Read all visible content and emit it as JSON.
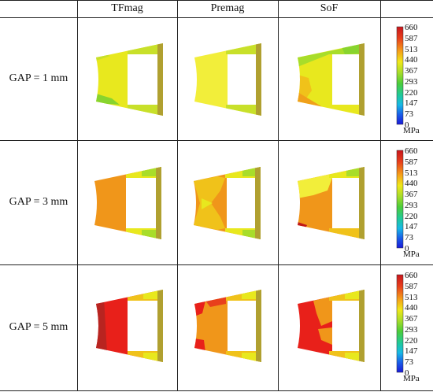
{
  "columns": [
    "TFmag",
    "Premag",
    "SoF"
  ],
  "rows": [
    {
      "label": "GAP = 1 mm"
    },
    {
      "label": "GAP = 3 mm"
    },
    {
      "label": "GAP = 5 mm"
    }
  ],
  "colorbar": {
    "ticks": [
      "660",
      "587",
      "513",
      "440",
      "367",
      "293",
      "220",
      "147",
      "73",
      "0"
    ],
    "unit": "MPa",
    "colors": [
      "#c8161d",
      "#e8401c",
      "#f5a01a",
      "#f0e81a",
      "#a8dd2a",
      "#4ccd3a",
      "#20c99a",
      "#18b8e6",
      "#1a5de8",
      "#1a1ad8"
    ]
  },
  "stress_colors": {
    "yellow": "#e8e81e",
    "light_yellow": "#f2ee3a",
    "yellow_green": "#c8e02a",
    "green": "#88d42e",
    "orange": "#f0961a",
    "red": "#e8201a",
    "dark_red": "#c01818",
    "olive": "#b0a030"
  }
}
